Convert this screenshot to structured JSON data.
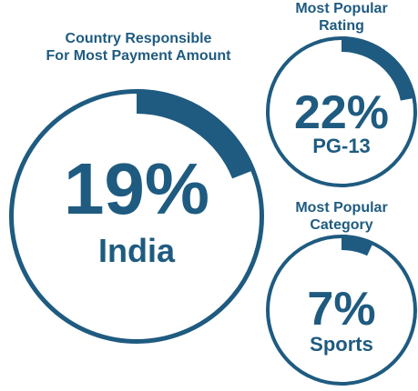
{
  "colors": {
    "accent": "#1f5b80",
    "background": "#ffffff"
  },
  "chart_data": [
    {
      "type": "pie",
      "title": "Country Responsible For Most Payment Amount",
      "title_lines": [
        "Country Responsible",
        "For Most Payment Amount"
      ],
      "value": 19,
      "value_label": "19%",
      "category": "India"
    },
    {
      "type": "pie",
      "title": "Most Popular Rating",
      "title_lines": [
        "Most Popular",
        "Rating"
      ],
      "value": 22,
      "value_label": "22%",
      "category": "PG-13"
    },
    {
      "type": "pie",
      "title": "Most Popular Category",
      "title_lines": [
        "Most Popular",
        "Category"
      ],
      "value": 7,
      "value_label": "7%",
      "category": "Sports"
    }
  ]
}
